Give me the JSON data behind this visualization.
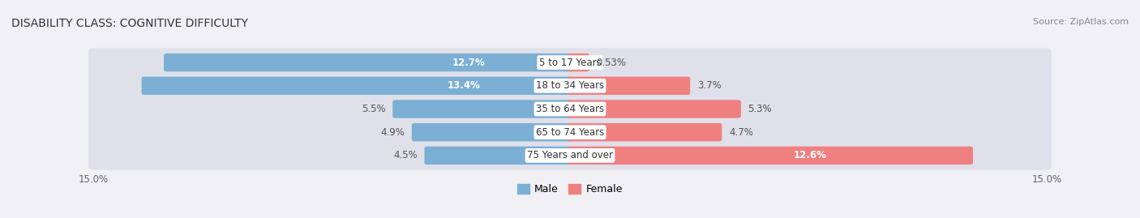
{
  "title": "DISABILITY CLASS: COGNITIVE DIFFICULTY",
  "source": "Source: ZipAtlas.com",
  "categories": [
    "5 to 17 Years",
    "18 to 34 Years",
    "35 to 64 Years",
    "65 to 74 Years",
    "75 Years and over"
  ],
  "male_values": [
    12.7,
    13.4,
    5.5,
    4.9,
    4.5
  ],
  "female_values": [
    0.53,
    3.7,
    5.3,
    4.7,
    12.6
  ],
  "male_color": "#7bafd4",
  "female_color": "#f08080",
  "max_val": 15.0,
  "male_labels": [
    "12.7%",
    "13.4%",
    "5.5%",
    "4.9%",
    "4.5%"
  ],
  "female_labels": [
    "0.53%",
    "3.7%",
    "5.3%",
    "4.7%",
    "12.6%"
  ],
  "background_color": "#f0f0f5",
  "row_bg_color": "#e0e0ea",
  "row_bg_light": "#ebebf2",
  "title_fontsize": 10,
  "label_fontsize": 8.5,
  "category_fontsize": 8.5,
  "axis_fontsize": 8.5,
  "source_fontsize": 8
}
